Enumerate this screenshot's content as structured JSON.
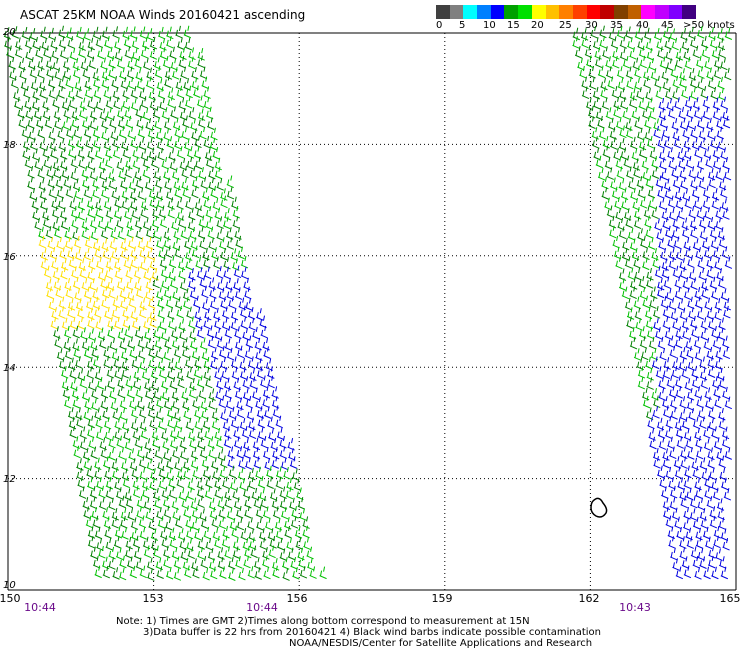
{
  "title": "ASCAT 25KM NOAA Winds 20160421 ascending",
  "legend": {
    "colors": [
      "#404040",
      "#808080",
      "#00ffff",
      "#0080ff",
      "#0000ff",
      "#00a000",
      "#00e000",
      "#ffff00",
      "#ffc000",
      "#ff8000",
      "#ff4000",
      "#ff0000",
      "#c00000",
      "#804000",
      "#c06000",
      "#ff00ff",
      "#c000ff",
      "#8000ff",
      "#400080"
    ],
    "labels": [
      "0",
      "5",
      "10",
      "15",
      "20",
      "25",
      "30",
      "35",
      "40",
      "45",
      ">50 knots"
    ]
  },
  "axes": {
    "y_ticks": [
      "20",
      "18",
      "16",
      "14",
      "12",
      "10"
    ],
    "x_ticks": [
      "150",
      "153",
      "156",
      "159",
      "162",
      "165"
    ],
    "times": [
      "10:44",
      "10:44",
      "10:43"
    ]
  },
  "notes": {
    "line1": "Note: 1) Times are GMT 2)Times along bottom correspond to measurement at 15N",
    "line2": "3)Data buffer is 22 hrs from 20160421 4) Black wind barbs indicate possible contamination",
    "line3": "NOAA/NESDIS/Center for Satellite Applications and Research"
  },
  "map_data": {
    "lon_range": [
      150,
      165
    ],
    "lat_range": [
      10,
      20
    ],
    "grid": true,
    "swaths": [
      {
        "name": "west",
        "lon_west_top": 150,
        "lon_east_top": 153.9,
        "lon_west_bottom": 151.9,
        "lon_east_bottom": 156.6
      },
      {
        "name": "east",
        "lon_west_top": 161.7,
        "lon_east_top": 165,
        "lon_west_bottom": 163.9,
        "lon_east_bottom": 165
      }
    ],
    "wind_colors": {
      "light": "#00c000",
      "dark": "#008000",
      "strong": "#ffe000",
      "weak": "#0000e0"
    }
  }
}
